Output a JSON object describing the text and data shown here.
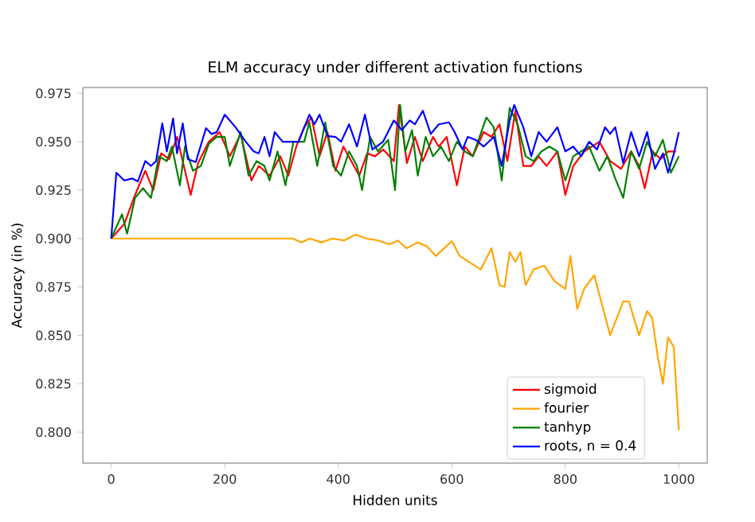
{
  "chart_data": {
    "type": "line",
    "title": "ELM accuracy under different activation functions",
    "xlabel": "Hidden units",
    "ylabel": "Accuracy (in %)",
    "xlim": [
      -50,
      1050
    ],
    "ylim": [
      0.784,
      0.978
    ],
    "xticks": [
      0,
      200,
      400,
      600,
      800,
      1000
    ],
    "yticks": [
      {
        "value": 0.8,
        "label": "0.800"
      },
      {
        "value": 0.825,
        "label": "0.825"
      },
      {
        "value": 0.85,
        "label": "0.850"
      },
      {
        "value": 0.875,
        "label": "0.875"
      },
      {
        "value": 0.9,
        "label": "0.900"
      },
      {
        "value": 0.925,
        "label": "0.925"
      },
      {
        "value": 0.95,
        "label": "0.950"
      },
      {
        "value": 0.975,
        "label": "0.975"
      }
    ],
    "legend": "bottom right",
    "grid": false,
    "marker": "none",
    "line_style": "solid",
    "series": [
      {
        "name": "sigmoid",
        "color": "#ff0000",
        "x": [
          0,
          23,
          42,
          60,
          74,
          88,
          102,
          116,
          126,
          140,
          153,
          172,
          191,
          209,
          228,
          247,
          260,
          279,
          298,
          312,
          326,
          340,
          353,
          367,
          381,
          395,
          409,
          423,
          437,
          451,
          465,
          479,
          498,
          507,
          521,
          535,
          549,
          567,
          577,
          591,
          609,
          623,
          637,
          656,
          670,
          684,
          698,
          712,
          726,
          740,
          753,
          767,
          786,
          800,
          814,
          833,
          847,
          860,
          879,
          898,
          916,
          930,
          940,
          954,
          968,
          981,
          995
        ],
        "values": [
          0.9,
          0.9075,
          0.9225,
          0.935,
          0.925,
          0.944,
          0.941,
          0.9525,
          0.94,
          0.9225,
          0.939,
          0.95,
          0.955,
          0.9425,
          0.954,
          0.93,
          0.9375,
          0.9325,
          0.9425,
          0.9325,
          0.9475,
          0.9575,
          0.9625,
          0.9425,
          0.955,
          0.935,
          0.9475,
          0.94,
          0.9325,
          0.944,
          0.9425,
          0.946,
          0.94,
          0.969,
          0.939,
          0.9525,
          0.94,
          0.9525,
          0.9475,
          0.9525,
          0.9275,
          0.9475,
          0.9425,
          0.955,
          0.9525,
          0.959,
          0.94,
          0.966,
          0.9375,
          0.9375,
          0.9425,
          0.9375,
          0.945,
          0.9225,
          0.9375,
          0.945,
          0.9475,
          0.95,
          0.94,
          0.936,
          0.945,
          0.9375,
          0.926,
          0.945,
          0.941,
          0.945,
          0.945
        ]
      },
      {
        "name": "fourier",
        "color": "#ffa500",
        "x": [
          0,
          100,
          200,
          300,
          320,
          335,
          350,
          370,
          390,
          410,
          430,
          450,
          470,
          490,
          505,
          520,
          540,
          556,
          572,
          600,
          614,
          651,
          670,
          684,
          693,
          702,
          712,
          721,
          730,
          744,
          763,
          781,
          800,
          809,
          821,
          833,
          851,
          879,
          902,
          912,
          930,
          944,
          953,
          963,
          972,
          981,
          991,
          1000
        ],
        "values": [
          0.9,
          0.9,
          0.9,
          0.9,
          0.9,
          0.898,
          0.9,
          0.898,
          0.9,
          0.899,
          0.902,
          0.9,
          0.899,
          0.897,
          0.899,
          0.895,
          0.898,
          0.896,
          0.891,
          0.8987,
          0.891,
          0.884,
          0.895,
          0.876,
          0.875,
          0.893,
          0.888,
          0.893,
          0.876,
          0.884,
          0.886,
          0.878,
          0.874,
          0.891,
          0.8637,
          0.874,
          0.881,
          0.85,
          0.8675,
          0.8675,
          0.85,
          0.8625,
          0.859,
          0.8387,
          0.825,
          0.849,
          0.844,
          0.801
        ]
      },
      {
        "name": "tanhyp",
        "color": "#008000",
        "x": [
          0,
          19,
          28,
          42,
          56,
          70,
          84,
          98,
          107,
          121,
          130,
          144,
          158,
          172,
          186,
          200,
          209,
          228,
          242,
          256,
          270,
          279,
          293,
          307,
          321,
          340,
          349,
          363,
          377,
          391,
          405,
          419,
          433,
          442,
          456,
          470,
          488,
          500,
          509,
          518,
          530,
          540,
          554,
          567,
          581,
          595,
          609,
          623,
          637,
          661,
          674,
          688,
          702,
          716,
          730,
          744,
          758,
          772,
          786,
          800,
          814,
          828,
          842,
          860,
          874,
          888,
          902,
          916,
          930,
          944,
          958,
          972,
          986,
          1000
        ],
        "values": [
          0.9,
          0.9125,
          0.9025,
          0.921,
          0.926,
          0.921,
          0.9425,
          0.94,
          0.9475,
          0.9275,
          0.9475,
          0.935,
          0.9375,
          0.949,
          0.9525,
          0.9525,
          0.9375,
          0.955,
          0.9325,
          0.94,
          0.9375,
          0.93,
          0.945,
          0.9275,
          0.95,
          0.95,
          0.96,
          0.9375,
          0.96,
          0.9375,
          0.9325,
          0.945,
          0.9375,
          0.925,
          0.9525,
          0.945,
          0.951,
          0.925,
          0.969,
          0.945,
          0.956,
          0.9325,
          0.9525,
          0.9425,
          0.9475,
          0.94,
          0.95,
          0.945,
          0.9425,
          0.9625,
          0.9575,
          0.93,
          0.9675,
          0.959,
          0.9425,
          0.94,
          0.945,
          0.9475,
          0.945,
          0.93,
          0.9425,
          0.945,
          0.9475,
          0.935,
          0.9425,
          0.931,
          0.921,
          0.945,
          0.936,
          0.95,
          0.9425,
          0.951,
          0.934,
          0.9425
        ]
      },
      {
        "name": "roots, n = 0.4",
        "color": "#0000ff",
        "x": [
          0,
          9,
          23,
          37,
          47,
          60,
          70,
          79,
          90,
          98,
          109,
          116,
          126,
          135,
          149,
          167,
          177,
          186,
          200,
          219,
          237,
          251,
          260,
          270,
          279,
          288,
          302,
          316,
          330,
          349,
          358,
          367,
          381,
          395,
          405,
          419,
          433,
          447,
          460,
          479,
          498,
          512,
          526,
          535,
          549,
          563,
          577,
          595,
          605,
          619,
          628,
          642,
          656,
          674,
          688,
          702,
          710,
          726,
          740,
          753,
          767,
          786,
          800,
          814,
          828,
          842,
          856,
          870,
          879,
          888,
          902,
          916,
          930,
          944,
          958,
          972,
          981,
          991,
          1000
        ],
        "values": [
          0.9,
          0.934,
          0.93,
          0.931,
          0.9295,
          0.94,
          0.9375,
          0.94,
          0.9595,
          0.945,
          0.962,
          0.944,
          0.9595,
          0.941,
          0.9395,
          0.957,
          0.954,
          0.955,
          0.964,
          0.9575,
          0.95,
          0.945,
          0.944,
          0.9525,
          0.9425,
          0.955,
          0.95,
          0.95,
          0.95,
          0.964,
          0.959,
          0.964,
          0.953,
          0.9525,
          0.95,
          0.959,
          0.9475,
          0.964,
          0.946,
          0.95,
          0.961,
          0.956,
          0.961,
          0.959,
          0.966,
          0.954,
          0.959,
          0.96,
          0.955,
          0.946,
          0.9525,
          0.951,
          0.9475,
          0.9525,
          0.9375,
          0.961,
          0.969,
          0.9575,
          0.9425,
          0.955,
          0.95,
          0.9575,
          0.945,
          0.9475,
          0.9425,
          0.95,
          0.946,
          0.9575,
          0.954,
          0.9575,
          0.939,
          0.955,
          0.9425,
          0.955,
          0.936,
          0.944,
          0.934,
          0.9435,
          0.955
        ]
      }
    ]
  }
}
